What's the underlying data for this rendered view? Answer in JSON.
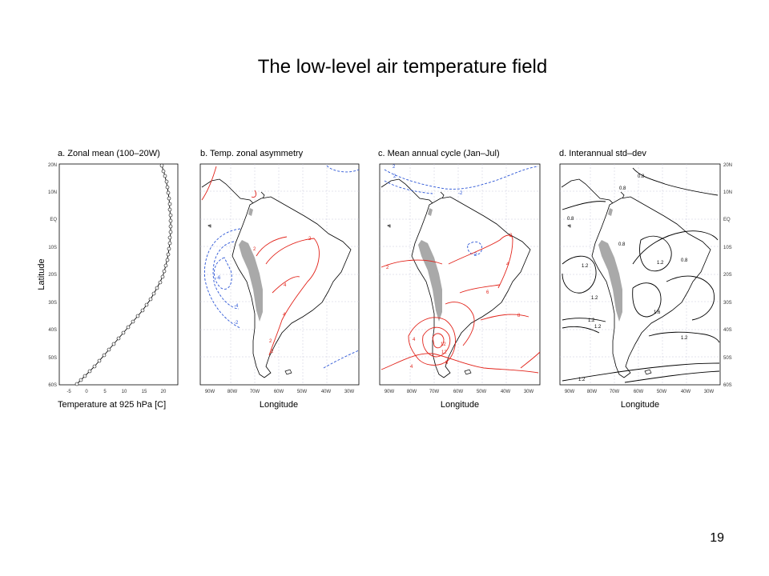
{
  "slide": {
    "title": "The low-level air temperature field",
    "page_number": "19"
  },
  "colors": {
    "positive_contour": "#e2231a",
    "negative_contour": "#2b55d6",
    "neutral_contour": "#000000",
    "andes_topography": "#a9a9a9",
    "grid": "#b8b8d0"
  },
  "figure": {
    "panel_a": {
      "title": "a. Zonal mean (100–20W)",
      "xlabel": "Temperature at 925 hPa [C]",
      "ylabel": "Latitude",
      "lat_ticks": [
        "20N",
        "10N",
        "EQ",
        "10S",
        "20S",
        "30S",
        "40S",
        "50S",
        "60S"
      ],
      "temp_ticks": [
        "-5",
        "0",
        "5",
        "10",
        "15",
        "20"
      ]
    },
    "panel_b": {
      "title": "b. Temp. zonal asymmetry",
      "xlabel": "Longitude",
      "contour_labels_red": [
        "2",
        "2",
        "4",
        "4",
        "2",
        "2"
      ],
      "contour_labels_blue": [
        "-6",
        "-4",
        "-2"
      ]
    },
    "panel_c": {
      "title": "c. Mean annual cycle (Jan–Jul)",
      "xlabel": "Longitude",
      "contour_labels_red": [
        "2",
        "4",
        "6",
        "8",
        "2",
        "8",
        "4",
        "12",
        "12",
        "4"
      ],
      "contour_labels_blue": [
        "2",
        "2",
        "-2",
        "2"
      ]
    },
    "panel_d": {
      "title": "d. Interannual std–dev",
      "xlabel": "Longitude",
      "contour_labels": [
        "0.8",
        "0.8",
        "0.8",
        "0.8",
        "1.2",
        "1.2",
        "0.8",
        "1.2",
        "1.6",
        "1.2",
        "1.2",
        "1.2",
        "1.2"
      ],
      "lat_ticks_right": [
        "20N",
        "10N",
        "EQ",
        "10S",
        "20S",
        "30S",
        "40S",
        "50S",
        "60S"
      ]
    },
    "lon_ticks": [
      "90W",
      "80W",
      "70W",
      "60W",
      "50W",
      "40W",
      "30W"
    ]
  }
}
